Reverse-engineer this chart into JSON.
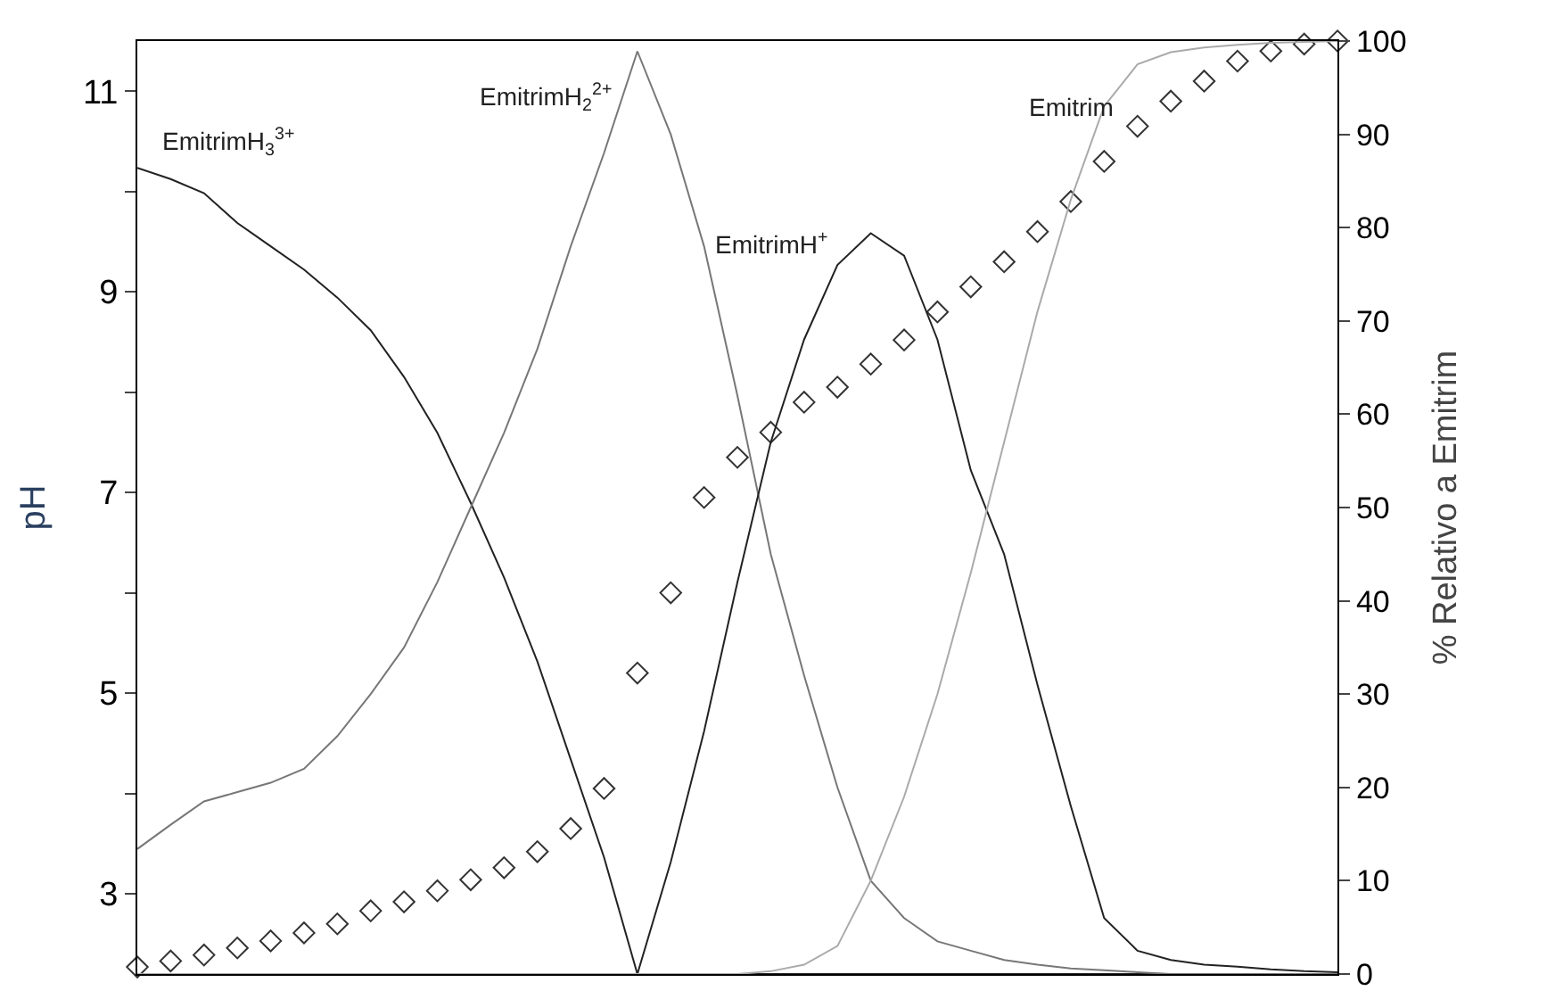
{
  "chart_data": {
    "type": "line",
    "categories": [
      null,
      null,
      null,
      null,
      null,
      null,
      null,
      null,
      null,
      null,
      null,
      null,
      null,
      null,
      null,
      null,
      null,
      null,
      null,
      null,
      null,
      null,
      null,
      null,
      null,
      null,
      null,
      null,
      null,
      null,
      null,
      null,
      null,
      null,
      null,
      null,
      null
    ],
    "ylabel": "pH",
    "y2label": "% Relativo a Emitrim",
    "ylim": [
      2.2,
      11.5
    ],
    "yticks": [
      3,
      {
        "value": 4,
        "label": null
      },
      5,
      {
        "value": 6,
        "label": null
      },
      7,
      {
        "value": 8,
        "label": null
      },
      9,
      {
        "value": 10,
        "label": null
      },
      11
    ],
    "y2lim": [
      0,
      100
    ],
    "y2ticks": [
      0,
      10,
      20,
      30,
      40,
      50,
      60,
      70,
      80,
      90,
      100
    ],
    "tick_labels": "y",
    "legend": false,
    "series": [
      {
        "name": "EmitrimH$_{3}$$^{3+}$",
        "axis": "y2",
        "color": "#222222",
        "marker": "none",
        "values": [
          86.4,
          85.2,
          83.7,
          80.5,
          78,
          75.5,
          72.5,
          69,
          64,
          58,
          50.5,
          42.5,
          33.5,
          23,
          12.5,
          0,
          0,
          0,
          0,
          0,
          0,
          0,
          0,
          0,
          0,
          0,
          0,
          0,
          0,
          0,
          0,
          0,
          0,
          0,
          0,
          0,
          0
        ]
      },
      {
        "name": "EmitrimH$_{2}$$^{2+}$",
        "axis": "y2",
        "color": "#777777",
        "marker": "none",
        "values": [
          13.4,
          16,
          18.5,
          19.5,
          20.5,
          22,
          25.5,
          30,
          35,
          42,
          50,
          58,
          67,
          78,
          88,
          98.9,
          90,
          78,
          62,
          45,
          32,
          20,
          10,
          6,
          3.5,
          2.5,
          1.5,
          1,
          0.6,
          0.4,
          0.2,
          0,
          0,
          0,
          0,
          0,
          0
        ]
      },
      {
        "name": "EmitrimH$^{+}$",
        "axis": "y2",
        "color": "#222222",
        "marker": "none",
        "values": [
          0,
          0,
          0,
          0,
          0,
          0,
          0,
          0,
          0,
          0,
          0,
          0,
          0,
          0,
          0,
          0,
          12,
          26,
          42,
          57,
          68,
          76,
          79.4,
          77,
          68,
          54,
          45,
          31,
          18,
          6,
          2.5,
          1.5,
          1,
          0.8,
          0.5,
          0.3,
          0.2
        ]
      },
      {
        "name": "Emitrim",
        "axis": "y2",
        "color": "#aaaaaa",
        "marker": "none",
        "values": [
          0,
          0,
          0,
          0,
          0,
          0,
          0,
          0,
          0,
          0,
          0,
          0,
          0,
          0,
          0,
          0,
          0,
          0,
          0,
          0.3,
          1,
          3,
          10,
          19,
          30,
          43,
          57,
          71,
          83,
          93,
          97.5,
          98.8,
          99.3,
          99.6,
          99.8,
          99.9,
          100
        ]
      },
      {
        "type": "scatter",
        "axis": "y",
        "color": "#333333",
        "marker": "diamond",
        "values": [
          2.27,
          2.33,
          2.39,
          2.46,
          2.53,
          2.61,
          2.7,
          2.83,
          2.92,
          3.03,
          3.14,
          3.26,
          3.42,
          3.65,
          4.05,
          5.2,
          6.0,
          6.95,
          7.35,
          7.6,
          7.9,
          8.05,
          8.28,
          8.52,
          8.8,
          9.05,
          9.3,
          9.6,
          9.9,
          10.3,
          10.65,
          10.9,
          11.1,
          11.3,
          11.4,
          11.47,
          11.5
        ]
      }
    ]
  }
}
